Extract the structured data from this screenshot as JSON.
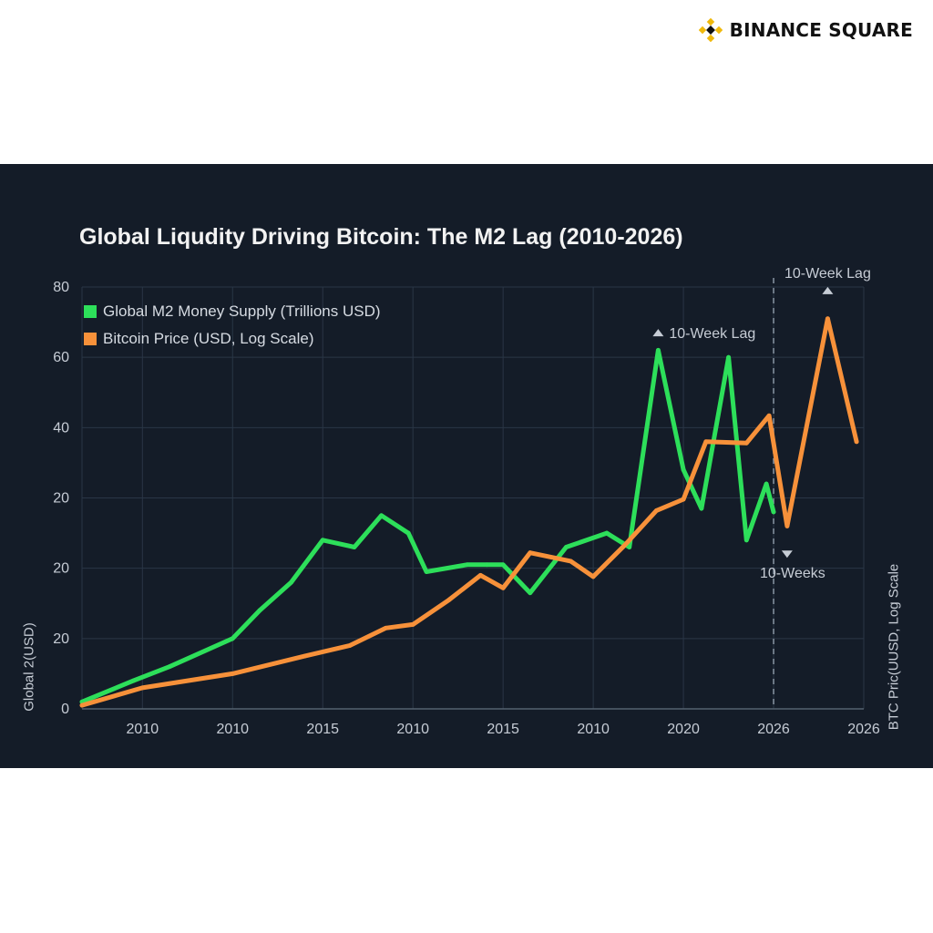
{
  "brand": {
    "name": "BINANCE SQUARE",
    "icon": "binance-diamond-icon",
    "color": "#f0b90b"
  },
  "colors": {
    "background": "#141c28",
    "m2": "#2ddf5a",
    "btc": "#f7913a",
    "grid": "#2a3646",
    "text": "#c6ccd5"
  },
  "chart_data": {
    "type": "line",
    "title": "Global Liqudity Driving Bitcoin: The M2 Lag (2010-2026)",
    "ylabel_left": "Global 2(USD)",
    "ylabel_right": "BTC Pric(UUSD, Log Scale",
    "x_tick_labels": [
      "2010",
      "2010",
      "2015",
      "2010",
      "2015",
      "2010",
      "2020",
      "2026",
      "2026"
    ],
    "x_tick_positions": [
      1,
      2,
      3,
      4,
      5,
      6,
      7,
      8,
      9
    ],
    "xlim": [
      0.33,
      9
    ],
    "y_tick_labels": [
      "0",
      "20",
      "20",
      "20",
      "40",
      "60",
      "80"
    ],
    "ylim": [
      0,
      6
    ],
    "grid": true,
    "legend_placement": "top-left",
    "series": [
      {
        "name": "Global M2 Money Supply (Trillions USD)",
        "color": "#2ddf5a",
        "x": [
          0.33,
          0.9,
          1.3,
          2.0,
          2.3,
          2.65,
          3.0,
          3.35,
          3.65,
          3.95,
          4.15,
          4.6,
          4.82,
          5.0,
          5.3,
          5.7,
          6.15,
          6.4,
          6.72,
          7.0,
          7.2,
          7.5,
          7.7,
          7.92,
          8.0
        ],
        "y": [
          0.1,
          0.4,
          0.6,
          1.0,
          1.4,
          1.8,
          2.4,
          2.3,
          2.75,
          2.5,
          1.95,
          2.05,
          2.05,
          2.05,
          1.65,
          2.3,
          2.5,
          2.3,
          5.1,
          3.4,
          2.85,
          5.0,
          2.4,
          3.2,
          2.8
        ]
      },
      {
        "name": "Bitcoin Price (USD, Log Scale)",
        "color": "#f7913a",
        "x": [
          0.33,
          1.0,
          2.0,
          2.8,
          3.3,
          3.7,
          4.0,
          4.4,
          4.75,
          5.0,
          5.3,
          5.75,
          6.0,
          6.35,
          6.7,
          7.0,
          7.25,
          7.7,
          7.95,
          8.15,
          8.6,
          8.92
        ],
        "y": [
          0.05,
          0.3,
          0.5,
          0.75,
          0.9,
          1.15,
          1.2,
          1.55,
          1.9,
          1.72,
          2.22,
          2.1,
          1.88,
          2.33,
          2.82,
          2.98,
          3.8,
          3.78,
          4.17,
          2.6,
          5.55,
          3.8
        ]
      }
    ],
    "annotations": [
      {
        "text": "10-Week Lag",
        "x": 6.72,
        "y": 5.35,
        "marker": "up"
      },
      {
        "text": "10-Week Lag",
        "x": 8.6,
        "y": 5.95,
        "marker": "up"
      },
      {
        "text": "10-Weeks",
        "x": 8.15,
        "y": 2.2,
        "marker": "down"
      }
    ],
    "vertical_line_x": 8.0
  }
}
